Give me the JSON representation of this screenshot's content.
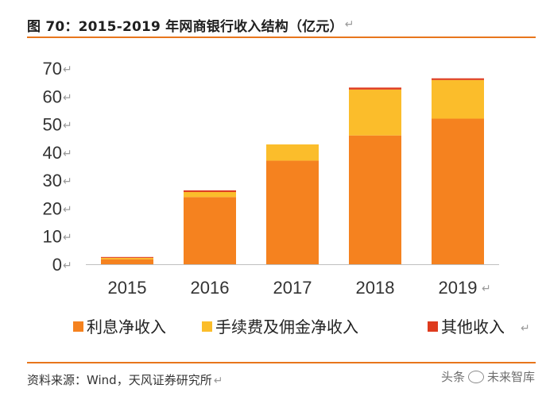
{
  "header": {
    "title": "图 70：2015-2019 年网商银行收入结构（亿元）",
    "para_mark": "↵"
  },
  "footer": {
    "source": "资料来源：Wind，天风证券研究所"
  },
  "watermark": {
    "left": "头条",
    "right": "未来智库"
  },
  "colors": {
    "net_interest": "#f5821f",
    "fee_commission": "#fbbd2b",
    "other": "#de3b1e",
    "axis": "#bfbfbf",
    "rule": "#e8761c"
  },
  "chart_data": {
    "type": "bar",
    "stacked": true,
    "title": "2015-2019 年网商银行收入结构（亿元）",
    "categories": [
      "2015",
      "2016",
      "2017",
      "2018",
      "2019"
    ],
    "y_ticks": [
      "0",
      "10",
      "20",
      "30",
      "40",
      "50",
      "60",
      "70"
    ],
    "ylim": [
      0,
      70
    ],
    "grid": false,
    "legend_position": "bottom",
    "series": [
      {
        "name": "利息净收入",
        "values": [
          1.8,
          24.0,
          37.0,
          46.0,
          52.0
        ]
      },
      {
        "name": "手续费及佣金净收入",
        "values": [
          0.5,
          1.8,
          5.8,
          16.4,
          13.8
        ]
      },
      {
        "name": "其他收入",
        "values": [
          0.3,
          0.6,
          0.0,
          0.7,
          0.6
        ]
      }
    ]
  }
}
